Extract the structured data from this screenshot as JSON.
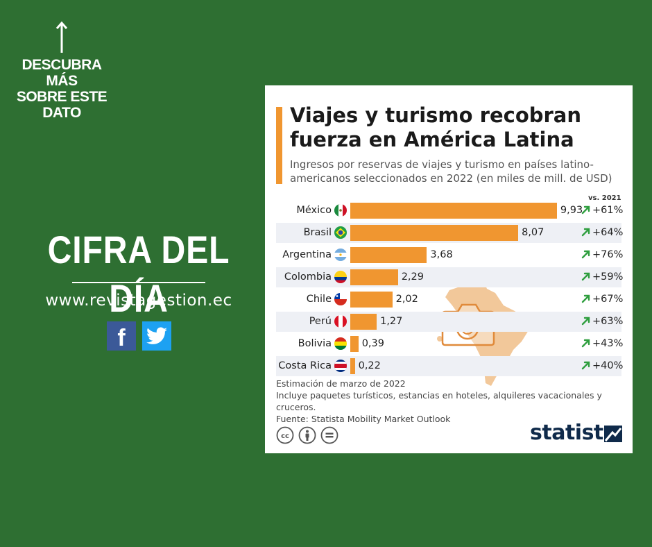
{
  "promo": {
    "lines": [
      "DESCUBRA MÁS",
      "SOBRE ESTE",
      "DATO"
    ]
  },
  "headline": "CIFRA DEL DÍA",
  "website": "www.revistagestion.ec",
  "social": [
    {
      "name": "facebook-icon",
      "glyph": "f"
    },
    {
      "name": "twitter-icon"
    }
  ],
  "colors": {
    "background": "#2e6f32",
    "bar": "#f09630",
    "up_arrow": "#2e9e3e",
    "brand": "#0f2a4a"
  },
  "chart_data": {
    "type": "bar",
    "orientation": "horizontal",
    "title": "Viajes y turismo recobran fuerza en América Latina",
    "subtitle": "Ingresos por reservas de viajes y turismo en países latino-americanos seleccionados en 2022 (en miles de mill. de USD)",
    "change_header": "vs. 2021",
    "categories": [
      "México",
      "Brasil",
      "Argentina",
      "Colombia",
      "Chile",
      "Perú",
      "Bolivia",
      "Costa Rica"
    ],
    "values": [
      9.93,
      8.07,
      3.68,
      2.29,
      2.02,
      1.27,
      0.39,
      0.22
    ],
    "value_labels": [
      "9,93",
      "8,07",
      "3,68",
      "2,29",
      "2,02",
      "1,27",
      "0,39",
      "0,22"
    ],
    "changes": [
      "+61%",
      "+64%",
      "+76%",
      "+59%",
      "+67%",
      "+63%",
      "+43%",
      "+40%"
    ],
    "flags": [
      "mexico-flag-icon",
      "brazil-flag-icon",
      "argentina-flag-icon",
      "colombia-flag-icon",
      "chile-flag-icon",
      "peru-flag-icon",
      "bolivia-flag-icon",
      "costa-rica-flag-icon"
    ],
    "xlim": [
      0,
      10
    ],
    "grid": false,
    "notes": [
      "Estimación de marzo de 2022",
      "Incluye paquetes turísticos, estancias en hoteles, alquileres vacacionales y cruceros.",
      "Fuente: Statista Mobility Market Outlook"
    ],
    "license_icons": [
      "cc-icon",
      "by-icon",
      "nd-icon"
    ],
    "brand": "statista"
  }
}
